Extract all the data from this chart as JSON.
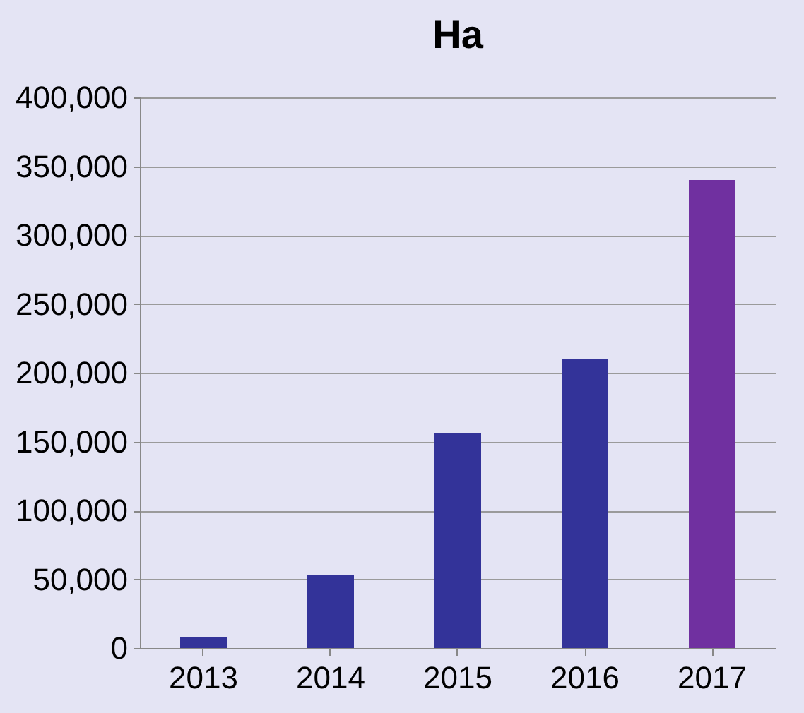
{
  "chart_data": {
    "type": "bar",
    "title": "Ha",
    "categories": [
      "2013",
      "2014",
      "2015",
      "2016",
      "2017"
    ],
    "values": [
      8000,
      53000,
      156000,
      210000,
      340000
    ],
    "colors": [
      "#333399",
      "#333399",
      "#333399",
      "#333399",
      "#7030a0"
    ],
    "ylim": [
      0,
      400000
    ],
    "yticks": [
      0,
      {
        "value": 50000,
        "label": "50,000"
      },
      {
        "value": 100000,
        "label": "100,000"
      },
      {
        "value": 150000,
        "label": "150,000"
      },
      {
        "value": 200000,
        "label": "200,000"
      },
      {
        "value": 250000,
        "label": "250,000"
      },
      {
        "value": 300000,
        "label": "300,000"
      },
      {
        "value": 350000,
        "label": "350,000"
      },
      {
        "value": 400000,
        "label": "400,000"
      }
    ],
    "grid": "y"
  }
}
